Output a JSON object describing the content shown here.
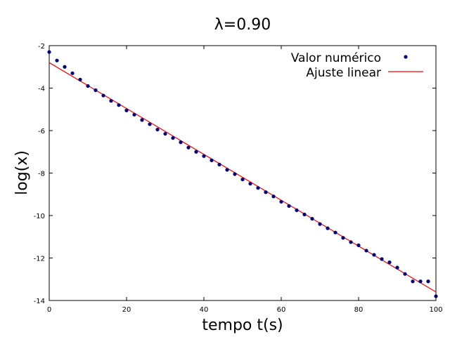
{
  "chart_data": {
    "type": "scatter",
    "title": "λ=0.90",
    "xlabel": "tempo t(s)",
    "ylabel": "log(x)",
    "xlim": [
      0,
      100
    ],
    "ylim": [
      -14,
      -2
    ],
    "xticks": [
      0,
      20,
      40,
      60,
      80,
      100
    ],
    "yticks": [
      -2,
      -4,
      -6,
      -8,
      -10,
      -12,
      -14
    ],
    "grid": false,
    "legend_position": "top-right",
    "series": [
      {
        "name": "Valor numérico",
        "kind": "points",
        "color": "#00007f",
        "x": [
          0,
          2,
          4,
          6,
          8,
          10,
          12,
          14,
          16,
          18,
          20,
          22,
          24,
          26,
          28,
          30,
          32,
          34,
          36,
          38,
          40,
          42,
          44,
          46,
          48,
          50,
          52,
          54,
          56,
          58,
          60,
          62,
          64,
          66,
          68,
          70,
          72,
          74,
          76,
          78,
          80,
          82,
          84,
          86,
          88,
          90,
          92,
          94,
          96,
          98,
          100
        ],
        "y": [
          -2.3,
          -2.7,
          -3.0,
          -3.3,
          -3.6,
          -3.9,
          -4.1,
          -4.35,
          -4.6,
          -4.8,
          -5.05,
          -5.25,
          -5.5,
          -5.7,
          -5.95,
          -6.15,
          -6.35,
          -6.55,
          -6.8,
          -7.0,
          -7.2,
          -7.4,
          -7.6,
          -7.85,
          -8.05,
          -8.3,
          -8.5,
          -8.7,
          -8.9,
          -9.1,
          -9.35,
          -9.55,
          -9.75,
          -9.95,
          -10.15,
          -10.4,
          -10.6,
          -10.8,
          -11.05,
          -11.25,
          -11.4,
          -11.65,
          -11.85,
          -12.05,
          -12.2,
          -12.45,
          -12.75,
          -13.1,
          -13.1,
          -13.1,
          -13.8
        ]
      },
      {
        "name": "Ajuste linear",
        "kind": "line",
        "color": "#ff0000",
        "x": [
          0,
          100
        ],
        "y": [
          -2.8,
          -13.6
        ]
      }
    ]
  }
}
